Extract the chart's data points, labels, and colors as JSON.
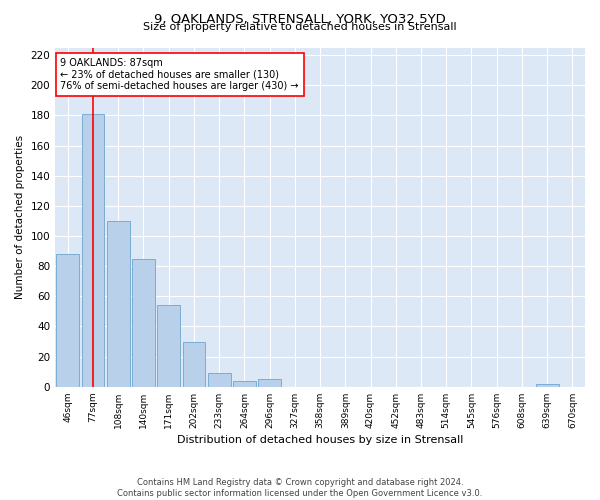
{
  "title_line1": "9, OAKLANDS, STRENSALL, YORK, YO32 5YD",
  "title_line2": "Size of property relative to detached houses in Strensall",
  "xlabel": "Distribution of detached houses by size in Strensall",
  "ylabel": "Number of detached properties",
  "bar_labels": [
    "46sqm",
    "77sqm",
    "108sqm",
    "140sqm",
    "171sqm",
    "202sqm",
    "233sqm",
    "264sqm",
    "296sqm",
    "327sqm",
    "358sqm",
    "389sqm",
    "420sqm",
    "452sqm",
    "483sqm",
    "514sqm",
    "545sqm",
    "576sqm",
    "608sqm",
    "639sqm",
    "670sqm"
  ],
  "bar_values": [
    88,
    181,
    110,
    85,
    54,
    30,
    9,
    4,
    5,
    0,
    0,
    0,
    0,
    0,
    0,
    0,
    0,
    0,
    0,
    2,
    0
  ],
  "bar_color": "#b8d0ea",
  "bar_edge_color": "#7aadd4",
  "red_line_x": 1.0,
  "annotation_text": "9 OAKLANDS: 87sqm\n← 23% of detached houses are smaller (130)\n76% of semi-detached houses are larger (430) →",
  "ylim": [
    0,
    225
  ],
  "yticks": [
    0,
    20,
    40,
    60,
    80,
    100,
    120,
    140,
    160,
    180,
    200,
    220
  ],
  "bg_color": "#dce8f5",
  "footer_line1": "Contains HM Land Registry data © Crown copyright and database right 2024.",
  "footer_line2": "Contains public sector information licensed under the Open Government Licence v3.0."
}
